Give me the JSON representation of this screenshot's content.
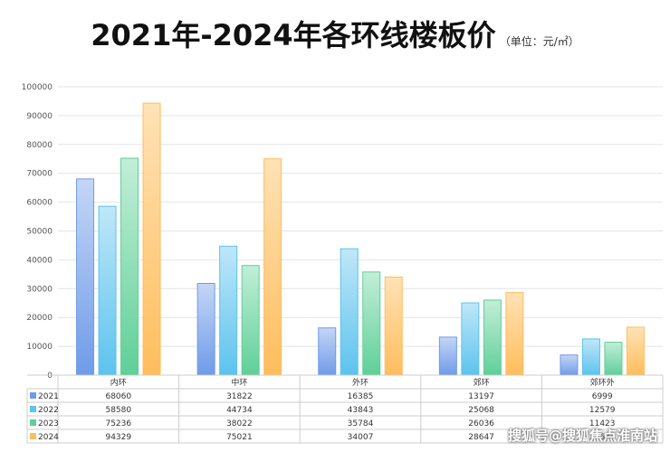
{
  "chart_data": {
    "type": "bar",
    "title": "2021年-2024年各环线楼板价",
    "unit": "（单位：元/㎡）",
    "categories": [
      "内环",
      "中环",
      "外环",
      "郊环",
      "郊环外"
    ],
    "ylim": [
      0,
      100000
    ],
    "yticks": [
      0,
      10000,
      20000,
      30000,
      40000,
      50000,
      60000,
      70000,
      80000,
      90000,
      100000
    ],
    "grid": true,
    "legend": "data-table",
    "series": [
      {
        "name": "2021",
        "values": [
          68060,
          31822,
          16385,
          13197,
          6999
        ],
        "color": "#6f9be8"
      },
      {
        "name": "2022",
        "values": [
          58580,
          44734,
          43843,
          25068,
          12579
        ],
        "color": "#5cc3ee"
      },
      {
        "name": "2023",
        "values": [
          75236,
          38022,
          35784,
          26036,
          11423
        ],
        "color": "#5fcf98"
      },
      {
        "name": "2024",
        "values": [
          94329,
          75021,
          34007,
          28647,
          16633
        ],
        "color": "#ffbd5c"
      }
    ]
  },
  "watermark": "搜狐号@搜狐焦点淮南站"
}
